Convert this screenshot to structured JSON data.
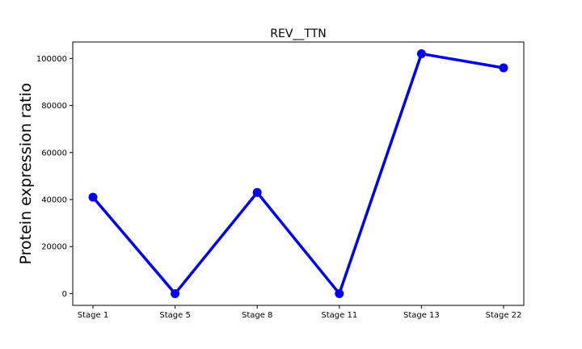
{
  "chart_data": {
    "type": "line",
    "title": "REV__TTN",
    "xlabel": "",
    "ylabel": "Protein expression ratio",
    "categories": [
      "Stage 1",
      "Stage 5",
      "Stage 8",
      "Stage 11",
      "Stage 13",
      "Stage 22"
    ],
    "series": [
      {
        "values": [
          41000,
          0,
          43000,
          0,
          102000,
          96000
        ],
        "color": "#0000ee"
      }
    ],
    "ylim": [
      -5000,
      107000
    ],
    "yticks": [
      0,
      20000,
      40000,
      60000,
      80000,
      100000
    ],
    "ytick_labels": [
      "0",
      "20000",
      "40000",
      "60000",
      "80000",
      "100000"
    ],
    "grid": false,
    "legend": "none"
  }
}
